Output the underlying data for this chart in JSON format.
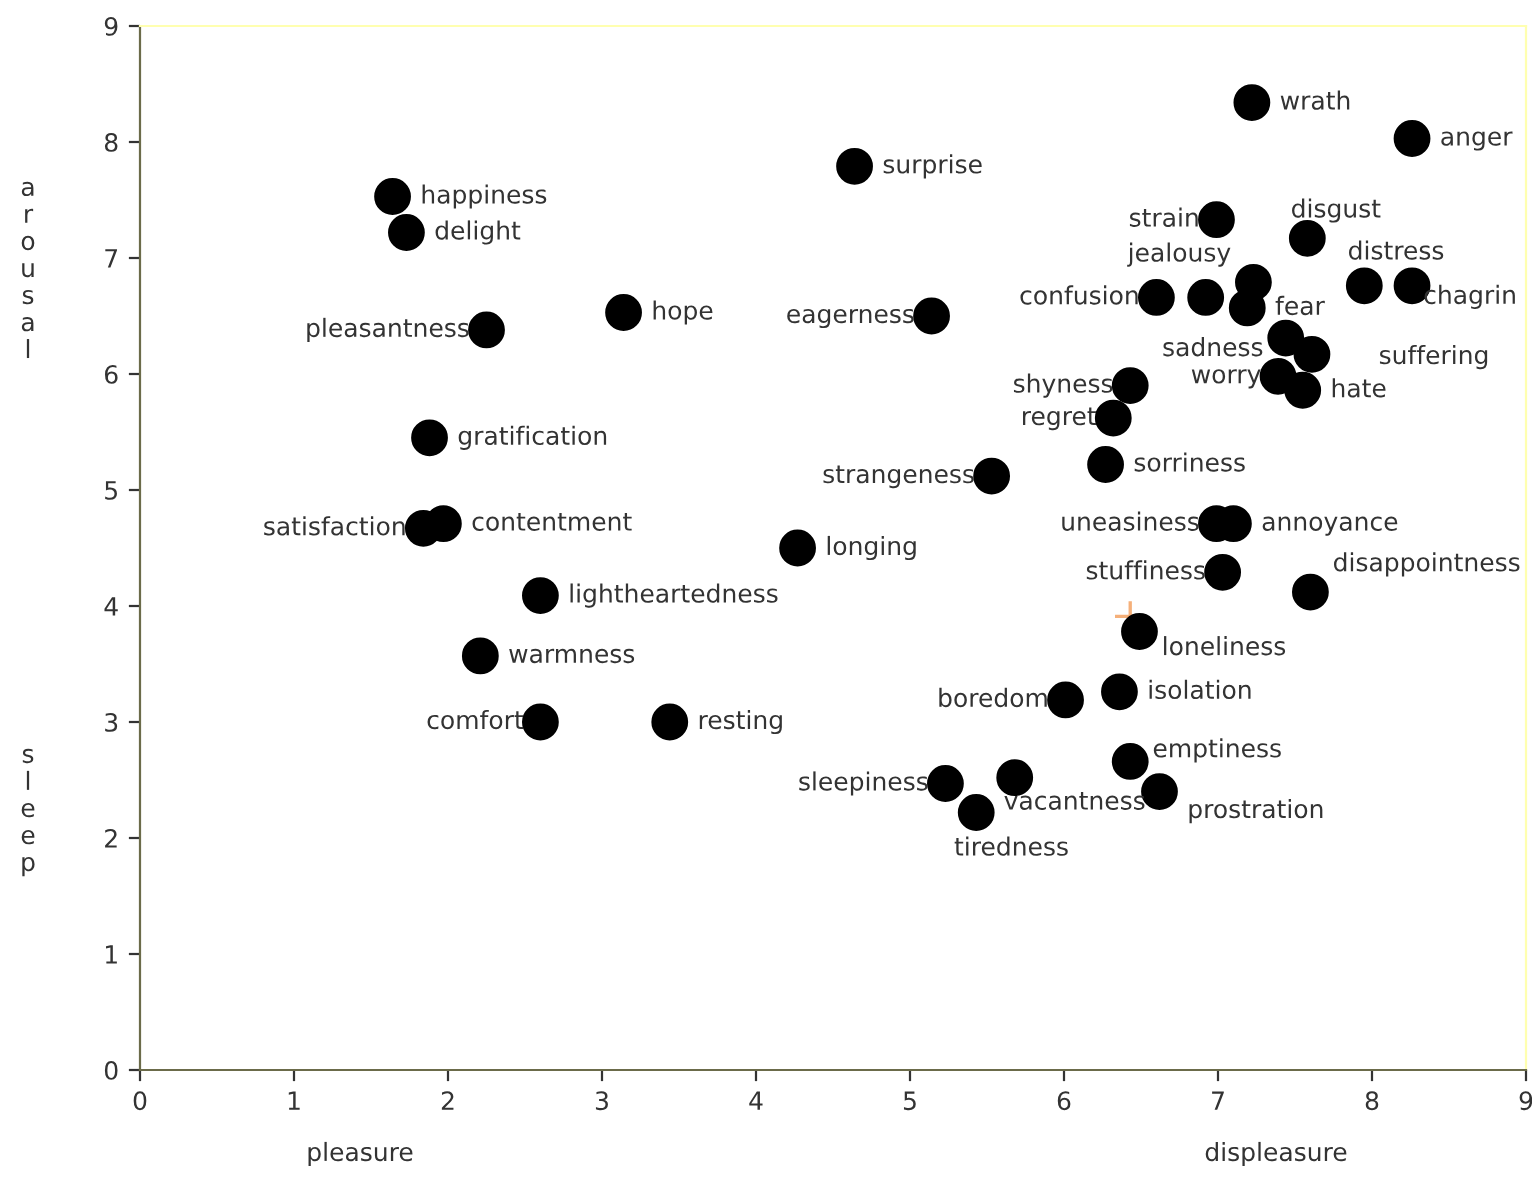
{
  "chart_data": {
    "type": "scatter",
    "xlabel": "pleasure",
    "ylabel": "arousal",
    "xlim": [
      0,
      9
    ],
    "ylim": [
      0,
      9
    ],
    "xticks": [
      0,
      1,
      2,
      3,
      4,
      5,
      6,
      7,
      8,
      9
    ],
    "yticks": [
      0,
      1,
      2,
      3,
      4,
      5,
      6,
      7,
      8,
      9
    ],
    "grid": false,
    "marker": "circle",
    "series": [
      {
        "color": "#000000",
        "x": [
          1.64,
          1.73,
          4.64,
          7.22,
          8.26,
          2.25,
          3.14,
          5.14,
          6.99,
          7.58,
          7.23,
          6.6,
          6.92,
          7.19,
          7.44,
          7.61,
          7.95,
          8.26,
          7.39,
          7.55,
          6.43,
          6.32,
          6.27,
          5.53,
          6.99,
          7.1,
          4.27,
          7.03,
          7.6,
          1.88,
          1.84,
          1.97,
          2.6,
          2.21,
          2.6,
          3.44,
          6.49,
          6.01,
          6.36,
          6.43,
          5.23,
          5.68,
          5.43,
          6.62
        ],
        "values": [
          7.53,
          7.22,
          7.79,
          8.34,
          8.03,
          6.38,
          6.53,
          6.5,
          7.33,
          7.17,
          6.79,
          6.66,
          6.66,
          6.57,
          6.31,
          6.17,
          6.76,
          6.76,
          5.98,
          5.86,
          5.9,
          5.62,
          5.22,
          5.12,
          4.71,
          4.71,
          4.5,
          4.29,
          4.12,
          5.45,
          4.67,
          4.71,
          4.09,
          3.57,
          3.0,
          3.0,
          3.78,
          3.19,
          3.26,
          2.66,
          2.47,
          2.52,
          2.22,
          2.4
        ]
      },
      {
        "color": "#f5b07a",
        "marker": "cross",
        "x": [
          6.43
        ],
        "values": [
          3.91
        ]
      }
    ],
    "annotations": [
      {
        "text": "happiness",
        "x": 1.64,
        "y": 7.53
      },
      {
        "text": "delight",
        "x": 1.73,
        "y": 7.22
      },
      {
        "text": "surprise",
        "x": 4.64,
        "y": 7.79
      },
      {
        "text": "wrath",
        "x": 7.22,
        "y": 8.34
      },
      {
        "text": "anger",
        "x": 8.26,
        "y": 8.03
      },
      {
        "text": "pleasantness",
        "x": 2.25,
        "y": 6.38
      },
      {
        "text": "hope",
        "x": 3.14,
        "y": 6.53
      },
      {
        "text": "eagerness",
        "x": 5.14,
        "y": 6.5
      },
      {
        "text": "strain",
        "x": 6.99,
        "y": 7.33
      },
      {
        "text": "disgust",
        "x": 7.58,
        "y": 7.17
      },
      {
        "text": "jealousy",
        "x": 7.23,
        "y": 6.79
      },
      {
        "text": "confusion",
        "x": 6.6,
        "y": 6.66
      },
      {
        "text": "fear",
        "x": 7.19,
        "y": 6.57
      },
      {
        "text": "sadness",
        "x": 7.44,
        "y": 6.31
      },
      {
        "text": "suffering",
        "x": 7.61,
        "y": 6.17
      },
      {
        "text": "distress",
        "x": 7.95,
        "y": 6.76
      },
      {
        "text": "chagrin",
        "x": 8.26,
        "y": 6.76
      },
      {
        "text": "worry",
        "x": 7.39,
        "y": 5.98
      },
      {
        "text": "hate",
        "x": 7.55,
        "y": 5.86
      },
      {
        "text": "shyness",
        "x": 6.43,
        "y": 5.9
      },
      {
        "text": "regret",
        "x": 6.32,
        "y": 5.62
      },
      {
        "text": "sorriness",
        "x": 6.27,
        "y": 5.22
      },
      {
        "text": "strangeness",
        "x": 5.53,
        "y": 5.12
      },
      {
        "text": "uneasiness",
        "x": 6.99,
        "y": 4.71
      },
      {
        "text": "annoyance",
        "x": 7.1,
        "y": 4.71
      },
      {
        "text": "longing",
        "x": 4.27,
        "y": 4.5
      },
      {
        "text": "stuffiness",
        "x": 7.03,
        "y": 4.29
      },
      {
        "text": "disappointness",
        "x": 7.6,
        "y": 4.12
      },
      {
        "text": "gratification",
        "x": 1.88,
        "y": 5.45
      },
      {
        "text": "satisfaction",
        "x": 1.84,
        "y": 4.67
      },
      {
        "text": "contentment",
        "x": 1.97,
        "y": 4.71
      },
      {
        "text": "lightheartedness",
        "x": 2.6,
        "y": 4.09
      },
      {
        "text": "warmness",
        "x": 2.21,
        "y": 3.57
      },
      {
        "text": "comfort",
        "x": 2.6,
        "y": 3.0
      },
      {
        "text": "resting",
        "x": 3.44,
        "y": 3.0
      },
      {
        "text": "loneliness",
        "x": 6.49,
        "y": 3.78
      },
      {
        "text": "boredom",
        "x": 6.01,
        "y": 3.19
      },
      {
        "text": "isolation",
        "x": 6.36,
        "y": 3.26
      },
      {
        "text": "emptiness",
        "x": 6.43,
        "y": 2.66
      },
      {
        "text": "sleepiness",
        "x": 5.23,
        "y": 2.47
      },
      {
        "text": "vacantness",
        "x": 5.68,
        "y": 2.52
      },
      {
        "text": "tiredness",
        "x": 5.43,
        "y": 2.22
      },
      {
        "text": "prostration",
        "x": 6.62,
        "y": 2.4
      },
      "displeasure",
      "sleep"
    ]
  }
}
